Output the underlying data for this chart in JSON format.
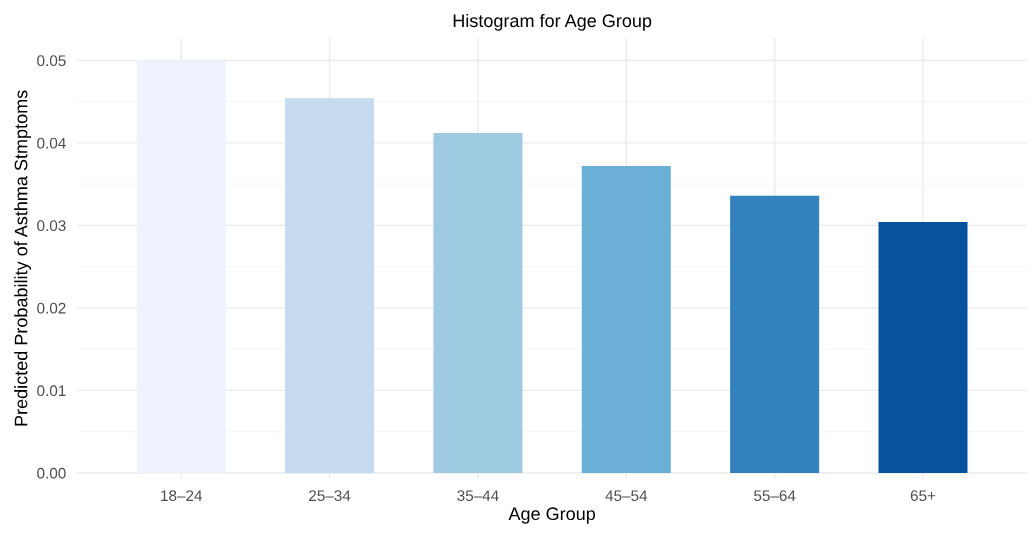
{
  "chart_data": {
    "type": "bar",
    "title": "Histogram for Age Group",
    "xlabel": "Age Group",
    "ylabel": "Predicted Probability of Asthma Stmptoms",
    "categories": [
      "18–24",
      "25–34",
      "35–44",
      "45–54",
      "55–64",
      "65+"
    ],
    "values": [
      0.05,
      0.0454,
      0.0412,
      0.0372,
      0.0336,
      0.0304
    ],
    "colors": [
      "#eff3ff",
      "#c6dbef",
      "#9ecae1",
      "#6baed6",
      "#3182bd",
      "#08519c"
    ],
    "ylim": [
      -0.0007,
      0.0527
    ],
    "yticks": [
      {
        "value": 0,
        "label": "0.00"
      },
      {
        "value": 0.01,
        "label": "0.01"
      },
      {
        "value": 0.02,
        "label": "0.02"
      },
      {
        "value": 0.03,
        "label": "0.03"
      },
      {
        "value": 0.04,
        "label": "0.04"
      },
      {
        "value": 0.05,
        "label": "0.05"
      }
    ],
    "grid": true
  }
}
